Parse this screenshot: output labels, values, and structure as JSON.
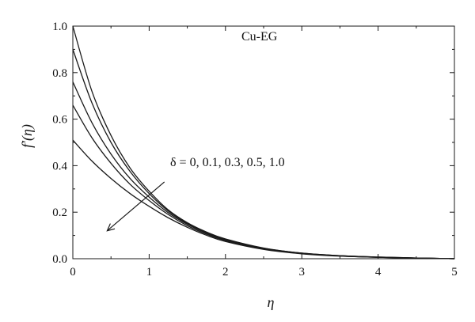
{
  "chart_data": {
    "type": "line",
    "xlabel": "η",
    "ylabel": "f′(η)",
    "xlim": [
      0,
      5
    ],
    "ylim": [
      0,
      1.0
    ],
    "xticks": [
      0,
      1,
      2,
      3,
      4,
      5
    ],
    "yticks": [
      0.0,
      0.2,
      0.4,
      0.6,
      0.8,
      1.0
    ],
    "xtick_labels": [
      "0",
      "1",
      "2",
      "3",
      "4",
      "5"
    ],
    "ytick_labels": [
      "0.0",
      "0.2",
      "0.4",
      "0.6",
      "0.8",
      "1.0"
    ],
    "grid": false,
    "line_color": "#1a1a1a",
    "annotations": {
      "fluid": "Cu-EG",
      "parameter": "δ = 0, 0.1, 0.3, 0.5, 1.0"
    },
    "x": [
      0,
      0.25,
      0.5,
      0.75,
      1.0,
      1.25,
      1.5,
      1.75,
      2.0,
      2.5,
      3.0,
      3.5,
      4.0,
      4.5,
      5.0
    ],
    "series": [
      {
        "values": [
          1.0,
          0.72,
          0.53,
          0.39,
          0.29,
          0.21,
          0.155,
          0.115,
          0.085,
          0.046,
          0.024,
          0.013,
          0.007,
          0.003,
          0.0
        ]
      },
      {
        "values": [
          0.9,
          0.67,
          0.5,
          0.375,
          0.28,
          0.205,
          0.152,
          0.113,
          0.083,
          0.045,
          0.024,
          0.013,
          0.007,
          0.003,
          0.0
        ]
      },
      {
        "values": [
          0.76,
          0.585,
          0.45,
          0.345,
          0.265,
          0.198,
          0.148,
          0.11,
          0.081,
          0.044,
          0.023,
          0.012,
          0.006,
          0.003,
          0.0
        ]
      },
      {
        "values": [
          0.66,
          0.52,
          0.41,
          0.32,
          0.25,
          0.19,
          0.142,
          0.106,
          0.078,
          0.042,
          0.022,
          0.012,
          0.006,
          0.003,
          0.0
        ]
      },
      {
        "values": [
          0.51,
          0.42,
          0.345,
          0.28,
          0.225,
          0.176,
          0.135,
          0.101,
          0.074,
          0.04,
          0.021,
          0.011,
          0.006,
          0.003,
          0.0
        ]
      }
    ],
    "arrow": {
      "from": [
        1.2,
        0.33
      ],
      "to": [
        0.45,
        0.12
      ]
    }
  }
}
